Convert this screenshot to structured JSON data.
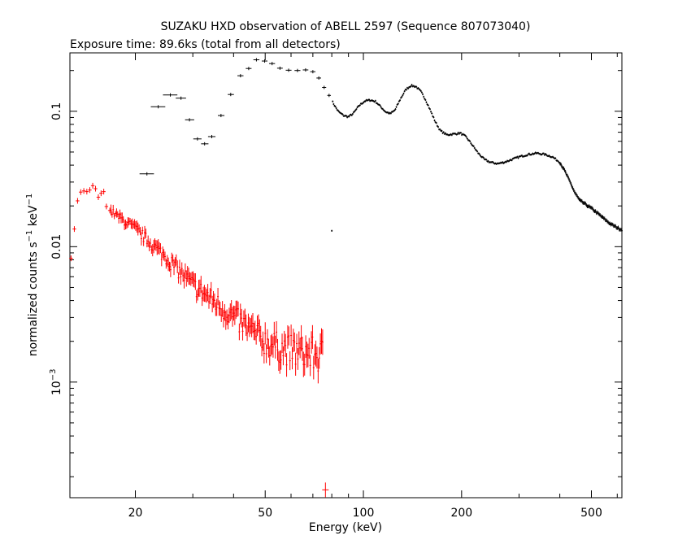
{
  "chart_data": {
    "type": "scatter",
    "title": "SUZAKU HXD observation of ABELL 2597 (Sequence 807073040)",
    "subtitle": "Exposure time: 89.6ks (total from all detectors)",
    "xlabel": "Energy (keV)",
    "ylabel_main": "normalized counts s",
    "ylabel_sup1": "−1",
    "ylabel_mid": " keV",
    "ylabel_sup2": "−1",
    "x_scale": "log",
    "y_scale": "log",
    "xlim": [
      12.6,
      620
    ],
    "ylim": [
      0.00014,
      0.27
    ],
    "x_ticks": [
      {
        "value": 20,
        "label": "20"
      },
      {
        "value": 50,
        "label": "50"
      },
      {
        "value": 100,
        "label": "100"
      },
      {
        "value": 200,
        "label": "200"
      },
      {
        "value": 500,
        "label": "500"
      }
    ],
    "y_ticks": [
      {
        "value": 0.1,
        "label": "0.1"
      },
      {
        "value": 0.01,
        "label": "0.01"
      },
      {
        "value": 0.001,
        "base": "10",
        "exp": "−3"
      }
    ],
    "grid": false,
    "legend": "none",
    "series": [
      {
        "color": "#000000",
        "binned_points": [
          {
            "x": 21.7,
            "xlo": 20.6,
            "xhi": 22.8,
            "y": 0.0345
          },
          {
            "x": 23.5,
            "xlo": 22.3,
            "xhi": 24.7,
            "y": 0.108
          },
          {
            "x": 25.6,
            "xlo": 24.3,
            "xhi": 26.9,
            "y": 0.132
          },
          {
            "x": 27.6,
            "xlo": 26.6,
            "xhi": 28.6,
            "y": 0.125
          },
          {
            "x": 29.3,
            "xlo": 28.4,
            "xhi": 30.3,
            "y": 0.0865
          },
          {
            "x": 31.0,
            "xlo": 30.1,
            "xhi": 31.9,
            "y": 0.0625
          },
          {
            "x": 32.6,
            "xlo": 31.8,
            "xhi": 33.5,
            "y": 0.0575
          },
          {
            "x": 34.3,
            "xlo": 33.4,
            "xhi": 35.2,
            "y": 0.065
          },
          {
            "x": 36.6,
            "xlo": 35.8,
            "xhi": 37.5,
            "y": 0.093
          },
          {
            "x": 39.2,
            "xlo": 38.4,
            "xhi": 40.1,
            "y": 0.133
          },
          {
            "x": 42.0,
            "xlo": 41.1,
            "xhi": 42.9,
            "y": 0.183
          },
          {
            "x": 44.5,
            "xlo": 43.6,
            "xhi": 45.4,
            "y": 0.207
          },
          {
            "x": 47.0,
            "xlo": 46.0,
            "xhi": 48.0,
            "y": 0.24
          },
          {
            "x": 49.8,
            "xlo": 48.8,
            "xhi": 50.8,
            "y": 0.235
          },
          {
            "x": 52.5,
            "xlo": 51.4,
            "xhi": 53.6,
            "y": 0.225
          },
          {
            "x": 55.5,
            "xlo": 54.4,
            "xhi": 56.6,
            "y": 0.208
          },
          {
            "x": 59.0,
            "xlo": 57.8,
            "xhi": 60.2,
            "y": 0.201
          },
          {
            "x": 62.8,
            "xlo": 61.5,
            "xhi": 64.1,
            "y": 0.2
          },
          {
            "x": 66.5,
            "xlo": 65.2,
            "xhi": 67.8,
            "y": 0.202
          },
          {
            "x": 70.0,
            "xlo": 68.7,
            "xhi": 71.3,
            "y": 0.196
          },
          {
            "x": 73.0,
            "xlo": 71.8,
            "xhi": 74.2,
            "y": 0.176
          },
          {
            "x": 75.8,
            "xlo": 74.7,
            "xhi": 76.9,
            "y": 0.15
          },
          {
            "x": 78.5,
            "xlo": 77.5,
            "xhi": 79.5,
            "y": 0.131
          }
        ],
        "curve_points": [
          {
            "x": 80,
            "y": 0.12
          },
          {
            "x": 82,
            "y": 0.108
          },
          {
            "x": 84,
            "y": 0.099
          },
          {
            "x": 87,
            "y": 0.093
          },
          {
            "x": 90,
            "y": 0.091
          },
          {
            "x": 93,
            "y": 0.096
          },
          {
            "x": 97,
            "y": 0.11
          },
          {
            "x": 101,
            "y": 0.119
          },
          {
            "x": 105,
            "y": 0.121
          },
          {
            "x": 109,
            "y": 0.118
          },
          {
            "x": 113,
            "y": 0.108
          },
          {
            "x": 117,
            "y": 0.099
          },
          {
            "x": 121,
            "y": 0.096
          },
          {
            "x": 125,
            "y": 0.102
          },
          {
            "x": 130,
            "y": 0.124
          },
          {
            "x": 135,
            "y": 0.145
          },
          {
            "x": 140,
            "y": 0.155
          },
          {
            "x": 145,
            "y": 0.152
          },
          {
            "x": 150,
            "y": 0.14
          },
          {
            "x": 155,
            "y": 0.122
          },
          {
            "x": 160,
            "y": 0.103
          },
          {
            "x": 166,
            "y": 0.084
          },
          {
            "x": 172,
            "y": 0.072
          },
          {
            "x": 180,
            "y": 0.067
          },
          {
            "x": 190,
            "y": 0.068
          },
          {
            "x": 198,
            "y": 0.069
          },
          {
            "x": 206,
            "y": 0.065
          },
          {
            "x": 215,
            "y": 0.057
          },
          {
            "x": 225,
            "y": 0.049
          },
          {
            "x": 235,
            "y": 0.044
          },
          {
            "x": 245,
            "y": 0.042
          },
          {
            "x": 258,
            "y": 0.041
          },
          {
            "x": 270,
            "y": 0.042
          },
          {
            "x": 285,
            "y": 0.044
          },
          {
            "x": 300,
            "y": 0.046
          },
          {
            "x": 320,
            "y": 0.048
          },
          {
            "x": 340,
            "y": 0.049
          },
          {
            "x": 360,
            "y": 0.048
          },
          {
            "x": 380,
            "y": 0.046
          },
          {
            "x": 400,
            "y": 0.042
          },
          {
            "x": 415,
            "y": 0.036
          },
          {
            "x": 430,
            "y": 0.03
          },
          {
            "x": 445,
            "y": 0.025
          },
          {
            "x": 460,
            "y": 0.022
          },
          {
            "x": 480,
            "y": 0.0205
          },
          {
            "x": 500,
            "y": 0.0192
          },
          {
            "x": 520,
            "y": 0.0178
          },
          {
            "x": 545,
            "y": 0.0162
          },
          {
            "x": 570,
            "y": 0.0148
          },
          {
            "x": 600,
            "y": 0.0138
          },
          {
            "x": 620,
            "y": 0.0133
          }
        ]
      },
      {
        "color": "#ff0000",
        "points": [
          {
            "x": 12.7,
            "y": 0.0082
          },
          {
            "x": 13.0,
            "y": 0.0135
          },
          {
            "x": 13.3,
            "y": 0.0218
          },
          {
            "x": 13.6,
            "y": 0.0253
          },
          {
            "x": 13.9,
            "y": 0.0258
          },
          {
            "x": 14.2,
            "y": 0.0255
          },
          {
            "x": 14.5,
            "y": 0.0262
          },
          {
            "x": 14.8,
            "y": 0.0282
          },
          {
            "x": 15.1,
            "y": 0.0268
          },
          {
            "x": 15.4,
            "y": 0.0232
          },
          {
            "x": 15.7,
            "y": 0.0248
          },
          {
            "x": 16.0,
            "y": 0.0255
          },
          {
            "x": 16.3,
            "y": 0.0198
          },
          {
            "x": 16.7,
            "y": 0.0185
          }
        ],
        "trend": [
          {
            "x": 16.7,
            "y": 0.0185
          },
          {
            "x": 20,
            "y": 0.0135
          },
          {
            "x": 25,
            "y": 0.0082
          },
          {
            "x": 30,
            "y": 0.0052
          },
          {
            "x": 35,
            "y": 0.0039
          },
          {
            "x": 40,
            "y": 0.003
          },
          {
            "x": 45,
            "y": 0.0024
          },
          {
            "x": 50,
            "y": 0.002
          },
          {
            "x": 55,
            "y": 0.0018
          },
          {
            "x": 60,
            "y": 0.0017
          },
          {
            "x": 70,
            "y": 0.0016
          },
          {
            "x": 75,
            "y": 0.00155
          }
        ],
        "outlier": {
          "x": 76.5,
          "y": 0.00016
        }
      }
    ]
  }
}
